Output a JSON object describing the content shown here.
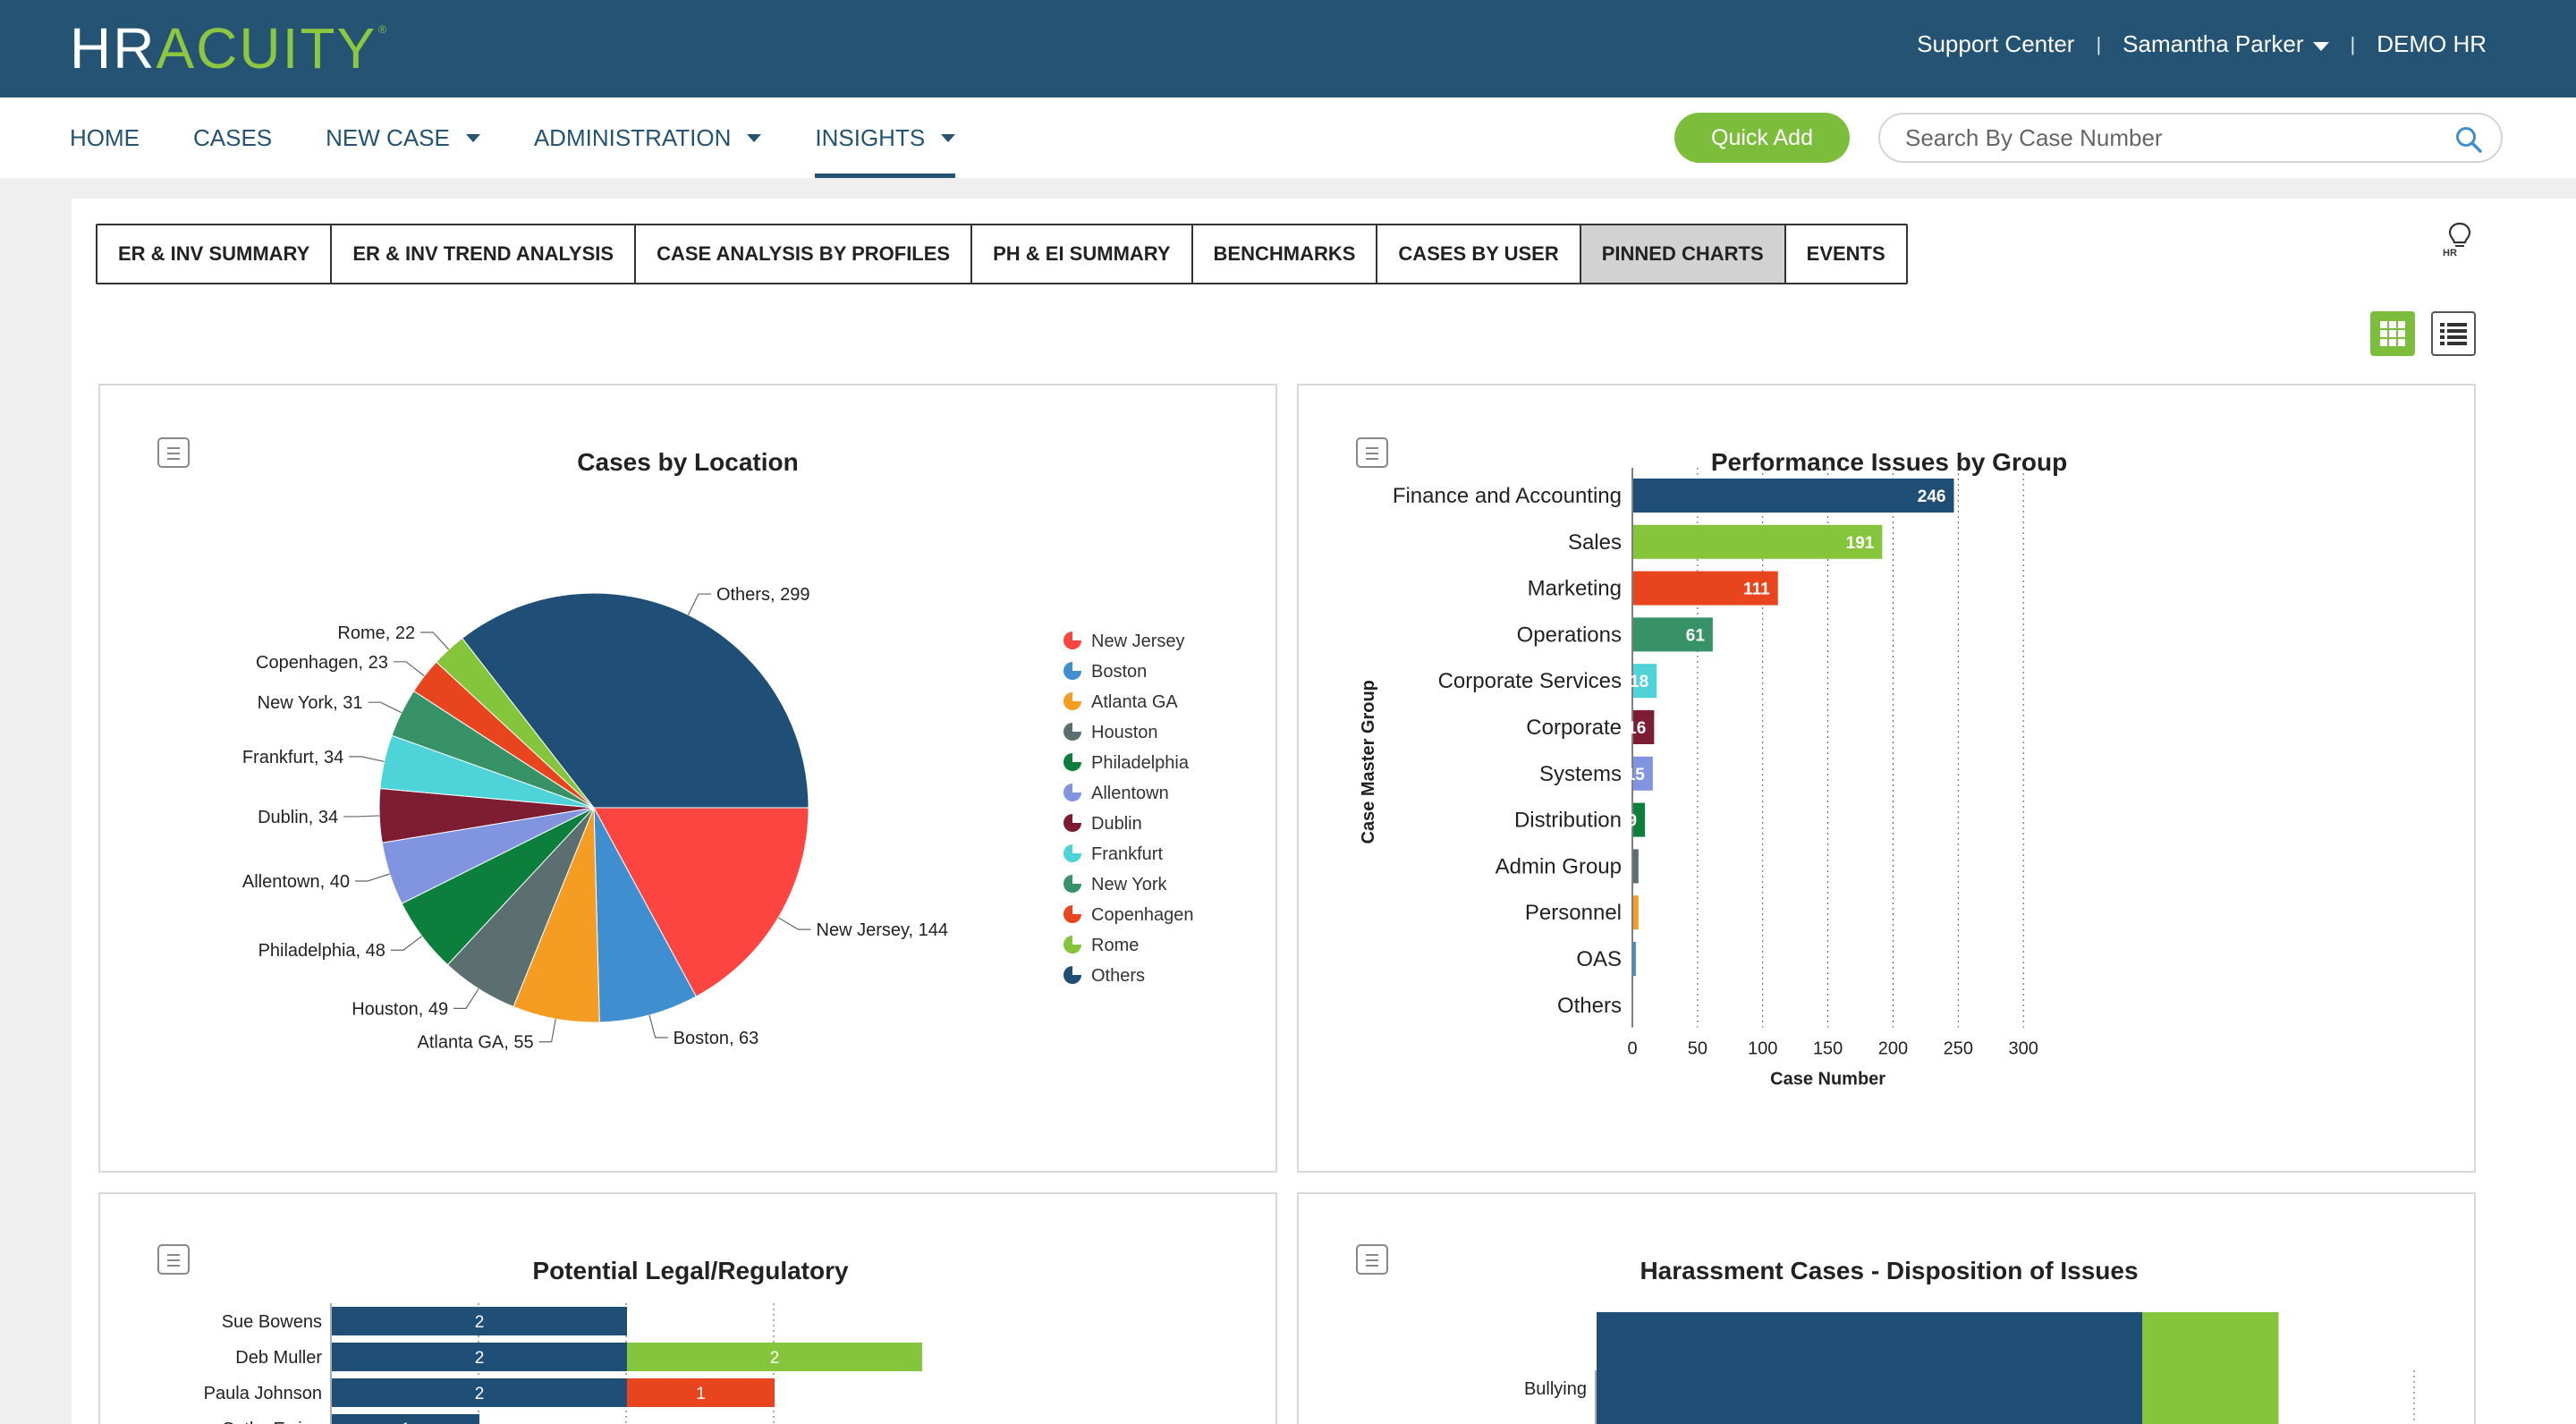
{
  "header": {
    "logo_hr": "HR",
    "logo_acuity": "ACUITY",
    "logo_tm": "®",
    "support_center": "Support Center",
    "user_name": "Samantha Parker",
    "org": "DEMO HR",
    "separator": "|"
  },
  "nav": {
    "items": [
      {
        "label": "HOME",
        "dropdown": false,
        "active": false
      },
      {
        "label": "CASES",
        "dropdown": false,
        "active": false
      },
      {
        "label": "NEW CASE",
        "dropdown": true,
        "active": false
      },
      {
        "label": "ADMINISTRATION",
        "dropdown": true,
        "active": false
      },
      {
        "label": "INSIGHTS",
        "dropdown": true,
        "active": true
      }
    ],
    "quick_add": "Quick Add",
    "search_placeholder": "Search By Case Number"
  },
  "tabs": [
    {
      "label": "ER & INV SUMMARY",
      "active": false
    },
    {
      "label": "ER & INV TREND ANALYSIS",
      "active": false
    },
    {
      "label": "CASE ANALYSIS BY PROFILES",
      "active": false
    },
    {
      "label": "PH & EI SUMMARY",
      "active": false
    },
    {
      "label": "BENCHMARKS",
      "active": false
    },
    {
      "label": "CASES BY USER",
      "active": false
    },
    {
      "label": "PINNED CHARTS",
      "active": true
    },
    {
      "label": "EVENTS",
      "active": false
    }
  ],
  "tips_icon_label": "HR",
  "colors": {
    "brand_dark": "#245373",
    "brand_green": "#7cbd3c"
  },
  "chart_data": [
    {
      "type": "pie",
      "title": "Cases by Location",
      "legend_position": "right",
      "slices": [
        {
          "label": "New Jersey",
          "value": 144,
          "color": "#fc4540"
        },
        {
          "label": "Boston",
          "value": 63,
          "color": "#3e8ed0"
        },
        {
          "label": "Atlanta GA",
          "value": 55,
          "color": "#f59c22"
        },
        {
          "label": "Houston",
          "value": 49,
          "color": "#5b6f71"
        },
        {
          "label": "Philadelphia",
          "value": 48,
          "color": "#0c7f3c"
        },
        {
          "label": "Allentown",
          "value": 40,
          "color": "#8194e0"
        },
        {
          "label": "Dublin",
          "value": 34,
          "color": "#7e1c33"
        },
        {
          "label": "Frankfurt",
          "value": 34,
          "color": "#4dd3d8"
        },
        {
          "label": "New York",
          "value": 31,
          "color": "#379268"
        },
        {
          "label": "Copenhagen",
          "value": 23,
          "color": "#e8451f"
        },
        {
          "label": "Rome",
          "value": 22,
          "color": "#84c53b"
        },
        {
          "label": "Others",
          "value": 299,
          "color": "#1f4f76"
        }
      ]
    },
    {
      "type": "bar",
      "orientation": "horizontal",
      "title": "Performance Issues by Group",
      "xlabel": "Case Number",
      "ylabel": "Case Master Group",
      "xlim": [
        0,
        300
      ],
      "xticks": [
        0,
        50,
        100,
        150,
        200,
        250,
        300
      ],
      "grid": "vertical dashed",
      "categories": [
        "Finance and Accounting",
        "Sales",
        "Marketing",
        "Operations",
        "Corporate Services",
        "Corporate",
        "Systems",
        "Distribution",
        "Admin Group",
        "Personnel",
        "OAS",
        "Others"
      ],
      "values": [
        246,
        191,
        111,
        61,
        18,
        16,
        15,
        9,
        4,
        4,
        2,
        0
      ],
      "value_labels": [
        "246",
        "191",
        "111",
        "61",
        "18",
        "16",
        "15",
        "9",
        "",
        "",
        "",
        ""
      ],
      "colors": [
        "#1f4f76",
        "#84c53b",
        "#e8451f",
        "#379268",
        "#4dd3d8",
        "#7e1c33",
        "#8194e0",
        "#0c7f3c",
        "#5b6f71",
        "#f59c22",
        "#3e8ed0",
        "#1f4f76"
      ]
    },
    {
      "type": "bar",
      "orientation": "horizontal",
      "stacked": true,
      "title": "Potential Legal/Regulatory",
      "xlim": [
        0,
        6
      ],
      "grid": "vertical dashed",
      "categories": [
        "Sue Bowens",
        "Deb Muller",
        "Paula Johnson",
        "Cathy Ewing"
      ],
      "series": [
        {
          "values": [
            2,
            2,
            2,
            1
          ],
          "color": "#1f4f76"
        },
        {
          "values": [
            0,
            2,
            0,
            0
          ],
          "color": "#84c53b"
        },
        {
          "values": [
            0,
            0,
            1,
            0
          ],
          "color": "#e8451f"
        }
      ]
    },
    {
      "type": "bar",
      "orientation": "horizontal",
      "stacked": true,
      "title": "Harassment Cases - Disposition of Issues",
      "grid": "vertical dashed",
      "categories": [
        "Bullying"
      ],
      "series": [
        {
          "values": [
            4
          ],
          "color": "#1f4f76"
        },
        {
          "values": [
            1
          ],
          "color": "#84c53b"
        }
      ]
    }
  ]
}
